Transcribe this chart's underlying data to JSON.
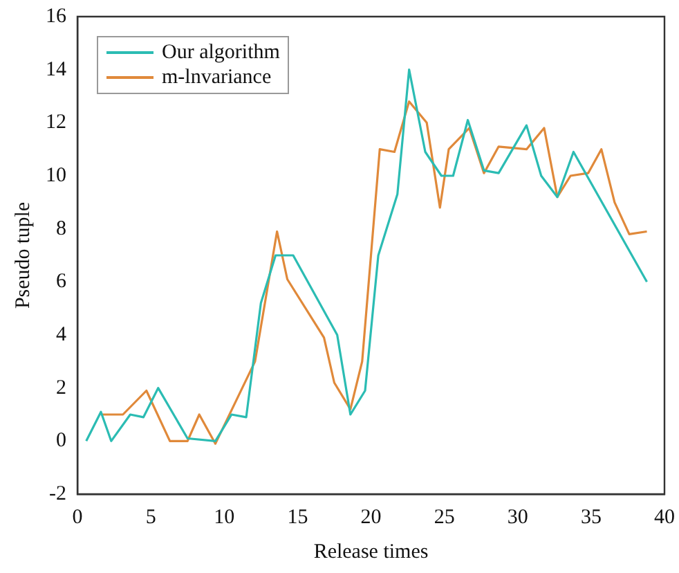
{
  "chart_data": {
    "type": "line",
    "xlabel": "Release times",
    "ylabel": "Pseudo tuple",
    "xlim": [
      0,
      40
    ],
    "xticks": [
      0,
      5,
      10,
      15,
      20,
      25,
      30,
      35,
      40
    ],
    "ylim": [
      -2,
      16
    ],
    "yticks": [
      -2,
      0,
      2,
      4,
      6,
      8,
      10,
      12,
      14,
      16
    ],
    "grid": false,
    "legend": "top left",
    "marker": "none",
    "line_style": "solid",
    "series": [
      {
        "name": "Our algorithm",
        "color": "#2bbcb3",
        "x": [
          0.6,
          1.6,
          2.3,
          3.6,
          4.5,
          5.5,
          7.5,
          9.4,
          10.5,
          11.5,
          12.5,
          13.5,
          14.7,
          17.7,
          18.6,
          19.6,
          20.5,
          21.8,
          22.6,
          23.7,
          24.8,
          25.6,
          26.6,
          27.7,
          28.7,
          30.6,
          31.6,
          32.7,
          33.8,
          38.8
        ],
        "values": [
          0,
          1.1,
          0,
          1,
          0.9,
          2,
          0.1,
          0,
          1,
          0.9,
          5.2,
          7,
          7,
          4,
          1,
          1.9,
          7,
          9.3,
          14,
          10.9,
          10,
          10,
          12.1,
          10.2,
          10.1,
          11.9,
          10,
          9.2,
          10.9,
          6
        ]
      },
      {
        "name": "m-lnvariance",
        "color": "#e0893a",
        "x": [
          1.6,
          3.1,
          4.7,
          6.3,
          7.5,
          8.3,
          9.4,
          12.1,
          13.6,
          14.3,
          16.8,
          17.5,
          18.6,
          19.4,
          20.6,
          21.6,
          22.6,
          23.8,
          24.7,
          25.3,
          26.7,
          27.7,
          28.7,
          30.6,
          31.8,
          32.7,
          33.6,
          34.8,
          35.7,
          36.6,
          37.6,
          38.8
        ],
        "values": [
          1,
          1,
          1.9,
          0,
          0,
          1,
          -0.1,
          3,
          7.9,
          6.1,
          3.9,
          2.2,
          1.2,
          3,
          11,
          10.9,
          12.8,
          12,
          8.8,
          11,
          11.8,
          10.1,
          11.1,
          11,
          11.8,
          9.2,
          10,
          10.1,
          11,
          9,
          7.8,
          7.9
        ]
      }
    ]
  }
}
